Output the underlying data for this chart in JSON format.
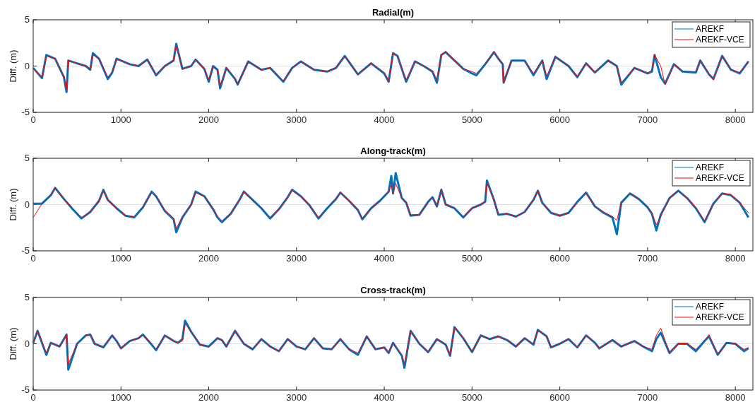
{
  "chart_data": [
    {
      "type": "line",
      "title": "Radial(m)",
      "ylabel": "Diff. (m)",
      "xlim": [
        0,
        8200
      ],
      "ylim": [
        -5,
        5
      ],
      "xticks": [
        0,
        1000,
        2000,
        3000,
        4000,
        5000,
        6000,
        7000,
        8000
      ],
      "yticks": [
        -5,
        0,
        5
      ],
      "grid": "y",
      "legend": "top right",
      "x": [
        0,
        100,
        150,
        250,
        350,
        380,
        400,
        500,
        600,
        650,
        680,
        750,
        850,
        900,
        950,
        1100,
        1200,
        1300,
        1400,
        1500,
        1600,
        1630,
        1700,
        1800,
        1850,
        1950,
        2000,
        2050,
        2100,
        2130,
        2200,
        2300,
        2330,
        2450,
        2600,
        2700,
        2850,
        2950,
        3050,
        3200,
        3350,
        3450,
        3550,
        3700,
        3850,
        4000,
        4050,
        4100,
        4150,
        4250,
        4350,
        4450,
        4550,
        4600,
        4650,
        4700,
        4800,
        4900,
        5000,
        5050,
        5150,
        5250,
        5300,
        5350,
        5360,
        5450,
        5600,
        5700,
        5800,
        5850,
        5950,
        6100,
        6200,
        6300,
        6400,
        6550,
        6650,
        6700,
        6850,
        7000,
        7050,
        7080,
        7150,
        7200,
        7300,
        7400,
        7550,
        7600,
        7700,
        7750,
        7850,
        7950,
        8050,
        8150
      ],
      "series": [
        {
          "name": "AREKF",
          "color": "#0072bd",
          "values": [
            -0.2,
            -1.3,
            1.2,
            0.8,
            -1.2,
            -2.8,
            0.6,
            0.3,
            0,
            -0.4,
            1.4,
            0.8,
            -1.4,
            -0.7,
            0.8,
            0.2,
            0,
            0.7,
            -1.0,
            0,
            0.6,
            2.4,
            -0.3,
            0,
            0.7,
            -0.3,
            -1.7,
            0,
            -0.4,
            -2.4,
            -0.2,
            -1.4,
            -2.0,
            0.5,
            -0.4,
            -0.2,
            -1.7,
            -0.2,
            0.5,
            -0.4,
            -0.6,
            -0.2,
            1.1,
            -0.9,
            0.3,
            -0.8,
            -1.7,
            1.4,
            1.1,
            -1.7,
            0.5,
            0,
            -0.6,
            -1.8,
            1.2,
            1.5,
            0.6,
            -0.3,
            -0.8,
            -1.0,
            0.2,
            1.5,
            0.8,
            0.2,
            -1.8,
            0.6,
            0.6,
            -1.0,
            0.6,
            -1.4,
            1.0,
            0,
            -1.2,
            0.3,
            -0.7,
            0.6,
            0,
            -2.0,
            -0.2,
            -0.8,
            -0.6,
            1.2,
            -1.2,
            -1.9,
            0.2,
            -0.6,
            -0.7,
            0.6,
            -0.9,
            -1.4,
            1.1,
            -0.4,
            -0.8,
            0.5
          ]
        },
        {
          "name": "AREKF-VCE",
          "color": "#ff0000",
          "values": [
            -0.2,
            -1.3,
            1.1,
            0.8,
            -1.1,
            -2.6,
            0.6,
            0.3,
            0,
            -0.4,
            1.2,
            0.8,
            -1.2,
            -0.7,
            0.8,
            0.2,
            0,
            0.7,
            -0.9,
            0,
            0.6,
            2.2,
            -0.3,
            0,
            0.7,
            -0.3,
            -1.5,
            0,
            -0.4,
            -2.2,
            -0.2,
            -1.3,
            -2.0,
            0.5,
            -0.4,
            -0.2,
            -1.6,
            -0.2,
            0.5,
            -0.4,
            -0.6,
            -0.2,
            1.1,
            -0.9,
            0.3,
            -0.7,
            -1.6,
            1.4,
            1.1,
            -1.5,
            0.5,
            0,
            -0.6,
            -1.5,
            1.2,
            1.6,
            0.6,
            -0.3,
            -0.6,
            -0.8,
            0.2,
            1.6,
            0.8,
            0.2,
            -1.8,
            0.6,
            0.6,
            -0.8,
            0.6,
            -1.1,
            1.0,
            0,
            -1.1,
            0.3,
            -0.7,
            0.6,
            0,
            -1.8,
            -0.2,
            -0.8,
            -0.4,
            1.2,
            0,
            -2.0,
            0.2,
            -0.6,
            -0.6,
            0.6,
            -0.8,
            -1.5,
            1.1,
            -0.4,
            -0.7,
            0.5
          ]
        }
      ]
    },
    {
      "type": "line",
      "title": "Along-track(m)",
      "ylabel": "Diff. (m)",
      "xlim": [
        0,
        8200
      ],
      "ylim": [
        -5,
        5
      ],
      "xticks": [
        0,
        1000,
        2000,
        3000,
        4000,
        5000,
        6000,
        7000,
        8000
      ],
      "yticks": [
        -5,
        0,
        5
      ],
      "grid": "y",
      "legend": "top right",
      "x": [
        0,
        100,
        200,
        250,
        350,
        450,
        550,
        650,
        750,
        800,
        850,
        950,
        1050,
        1150,
        1250,
        1350,
        1400,
        1500,
        1600,
        1630,
        1700,
        1800,
        1850,
        1950,
        2050,
        2100,
        2150,
        2250,
        2350,
        2400,
        2500,
        2600,
        2700,
        2800,
        2900,
        2950,
        3050,
        3150,
        3250,
        3350,
        3450,
        3500,
        3600,
        3700,
        3750,
        3850,
        3950,
        4050,
        4080,
        4100,
        4130,
        4200,
        4250,
        4300,
        4400,
        4500,
        4550,
        4600,
        4650,
        4700,
        4800,
        4900,
        5000,
        5100,
        5150,
        5170,
        5250,
        5300,
        5400,
        5500,
        5600,
        5700,
        5750,
        5800,
        5900,
        6000,
        6100,
        6200,
        6300,
        6400,
        6500,
        6600,
        6650,
        6700,
        6800,
        6900,
        7000,
        7050,
        7100,
        7150,
        7250,
        7350,
        7450,
        7550,
        7650,
        7750,
        7850,
        7950,
        8050,
        8150
      ],
      "series": [
        {
          "name": "AREKF",
          "color": "#0072bd",
          "values": [
            0.1,
            0.1,
            1.0,
            1.8,
            0.6,
            -0.5,
            -1.5,
            -0.8,
            0.4,
            1.6,
            0.5,
            -0.4,
            -1.2,
            -1.4,
            -0.3,
            1.4,
            0.9,
            -0.7,
            -1.6,
            -3.0,
            -1.4,
            0,
            1.4,
            0.9,
            -0.5,
            -1.4,
            -1.9,
            -1.0,
            0.5,
            1.4,
            0.5,
            -0.4,
            -1.5,
            -0.5,
            0.8,
            1.6,
            0.9,
            -0.1,
            -1.5,
            -0.4,
            0.6,
            1.3,
            0.4,
            -0.6,
            -1.6,
            -0.4,
            0.4,
            1.4,
            3.1,
            1.2,
            3.4,
            0.7,
            0.2,
            -1.2,
            -1.1,
            0.3,
            0.8,
            -0.2,
            1.6,
            0,
            -0.4,
            -1.4,
            -0.4,
            0,
            0.3,
            2.6,
            0.5,
            -1.1,
            -1.0,
            -1.3,
            -0.8,
            0.5,
            1.5,
            0.2,
            -0.9,
            -1.2,
            -0.9,
            0.3,
            1.3,
            -0.2,
            -0.9,
            -1.4,
            -3.2,
            0.2,
            1.2,
            0.6,
            -0.3,
            -1.0,
            -2.8,
            -1.1,
            0.7,
            1.5,
            0.7,
            -0.4,
            -1.9,
            0.1,
            1.2,
            1.0,
            0.2,
            -1.4
          ]
        },
        {
          "name": "AREKF-VCE",
          "color": "#ff0000",
          "values": [
            -1.4,
            0.1,
            1.0,
            1.8,
            0.6,
            -0.5,
            -1.4,
            -0.8,
            0.4,
            1.5,
            0.5,
            -0.4,
            -1.2,
            -1.3,
            -0.3,
            1.3,
            0.9,
            -0.6,
            -1.5,
            -2.6,
            -1.3,
            0,
            1.3,
            0.9,
            -0.5,
            -1.3,
            -1.8,
            -1.0,
            0.5,
            1.4,
            0.5,
            -0.4,
            -1.4,
            -0.5,
            0.8,
            1.5,
            0.9,
            -0.1,
            -1.4,
            -0.4,
            0.6,
            1.3,
            0.4,
            -0.6,
            -1.5,
            -0.4,
            0.4,
            1.4,
            2.1,
            1.2,
            2.3,
            0.7,
            0.2,
            -1.1,
            -1.1,
            0.3,
            0.8,
            -0.2,
            1.5,
            0,
            -0.4,
            -1.3,
            -0.4,
            0,
            0.3,
            2.4,
            0.5,
            -1.1,
            -1.0,
            -1.3,
            -0.8,
            0.5,
            1.5,
            0.2,
            -0.9,
            -1.2,
            -0.9,
            0.2,
            1.2,
            -0.2,
            -0.8,
            -1.3,
            -1.7,
            0.2,
            1.2,
            0.6,
            -0.3,
            -0.9,
            -2.2,
            -1.3,
            0.7,
            1.5,
            0.7,
            -0.3,
            -1.8,
            0.1,
            1.2,
            1.1,
            0.2,
            -0.9
          ]
        }
      ]
    },
    {
      "type": "line",
      "title": "Cross-track(m)",
      "ylabel": "Diff. (m)",
      "xlim": [
        0,
        8200
      ],
      "ylim": [
        -5,
        5
      ],
      "xticks": [
        0,
        1000,
        2000,
        3000,
        4000,
        5000,
        6000,
        7000,
        8000
      ],
      "yticks": [
        -5,
        0,
        5
      ],
      "grid": "y",
      "legend": "top right",
      "x": [
        0,
        50,
        150,
        200,
        300,
        380,
        400,
        500,
        600,
        650,
        700,
        800,
        900,
        950,
        1000,
        1100,
        1200,
        1250,
        1350,
        1400,
        1500,
        1600,
        1650,
        1700,
        1730,
        1800,
        1900,
        2000,
        2100,
        2150,
        2200,
        2300,
        2400,
        2500,
        2600,
        2700,
        2800,
        2900,
        3000,
        3100,
        3200,
        3300,
        3400,
        3500,
        3600,
        3700,
        3800,
        3900,
        4000,
        4050,
        4100,
        4200,
        4230,
        4300,
        4400,
        4500,
        4600,
        4700,
        4750,
        4800,
        4900,
        5000,
        5100,
        5200,
        5300,
        5400,
        5500,
        5600,
        5700,
        5750,
        5850,
        5900,
        6000,
        6100,
        6200,
        6300,
        6400,
        6450,
        6600,
        6700,
        6850,
        6950,
        7050,
        7100,
        7150,
        7250,
        7350,
        7450,
        7550,
        7650,
        7700,
        7800,
        7900,
        8000,
        8100,
        8150
      ],
      "series": [
        {
          "name": "AREKF",
          "color": "#0072bd",
          "values": [
            0.1,
            1.4,
            -1.2,
            0.1,
            -0.3,
            1.0,
            -2.8,
            0,
            0.9,
            1.0,
            0,
            -0.4,
            0.9,
            0.3,
            -0.5,
            0.3,
            0.6,
            1.0,
            -0.1,
            -0.7,
            0.9,
            0.3,
            0.1,
            0.5,
            2.5,
            1.3,
            -0.1,
            -0.3,
            0.6,
            0.4,
            -0.3,
            1.4,
            0,
            -0.6,
            0.5,
            -0.3,
            -0.8,
            0.5,
            -0.3,
            -0.6,
            0.6,
            -0.5,
            -0.6,
            0.5,
            -0.6,
            -1.2,
            0.8,
            -0.6,
            -0.4,
            -1.0,
            0.1,
            -1.3,
            -2.6,
            1.4,
            0,
            -0.9,
            0.5,
            -0.1,
            -1.3,
            1.8,
            0.6,
            -0.9,
            0.9,
            0.5,
            0.8,
            0.4,
            -0.3,
            0.6,
            -0.1,
            1.5,
            0.8,
            -0.4,
            0,
            0.5,
            -0.4,
            0.9,
            0.1,
            -0.5,
            0.4,
            -0.3,
            0.3,
            -0.3,
            -0.8,
            0.5,
            1.2,
            -1.0,
            0,
            0,
            -0.8,
            0.3,
            0.8,
            -1.2,
            0.1,
            0,
            -0.8,
            -0.5
          ]
        },
        {
          "name": "AREKF-VCE",
          "color": "#ff0000",
          "values": [
            0.1,
            1.4,
            -1.0,
            0.1,
            -0.3,
            1.0,
            -2.2,
            0,
            0.9,
            1.0,
            0,
            -0.3,
            0.9,
            0.3,
            -0.5,
            0.3,
            0.6,
            1.0,
            -0.1,
            -0.6,
            0.9,
            0.3,
            0.1,
            0.3,
            2.2,
            1.3,
            -0.1,
            -0.3,
            0.6,
            0.4,
            -0.3,
            1.4,
            0,
            -0.6,
            0.5,
            -0.3,
            -0.8,
            0.5,
            -0.3,
            -0.6,
            0.6,
            -0.5,
            -0.6,
            0.5,
            -0.6,
            -1.0,
            0.8,
            -0.6,
            -0.4,
            -0.9,
            0.1,
            -1.2,
            -2.2,
            1.4,
            0,
            -0.9,
            0.5,
            -0.1,
            -1.3,
            1.8,
            0.6,
            -0.9,
            0.9,
            0.5,
            0.8,
            0.4,
            -0.3,
            0.6,
            -0.1,
            1.5,
            0.8,
            -0.4,
            0,
            0.5,
            -0.4,
            0.9,
            0.1,
            -0.5,
            0.4,
            -0.3,
            0.3,
            -0.3,
            -0.6,
            0.9,
            1.7,
            -1.0,
            0,
            0,
            -0.6,
            0.3,
            1.0,
            -1.2,
            0.1,
            0,
            -0.6,
            -0.4
          ]
        }
      ]
    }
  ]
}
